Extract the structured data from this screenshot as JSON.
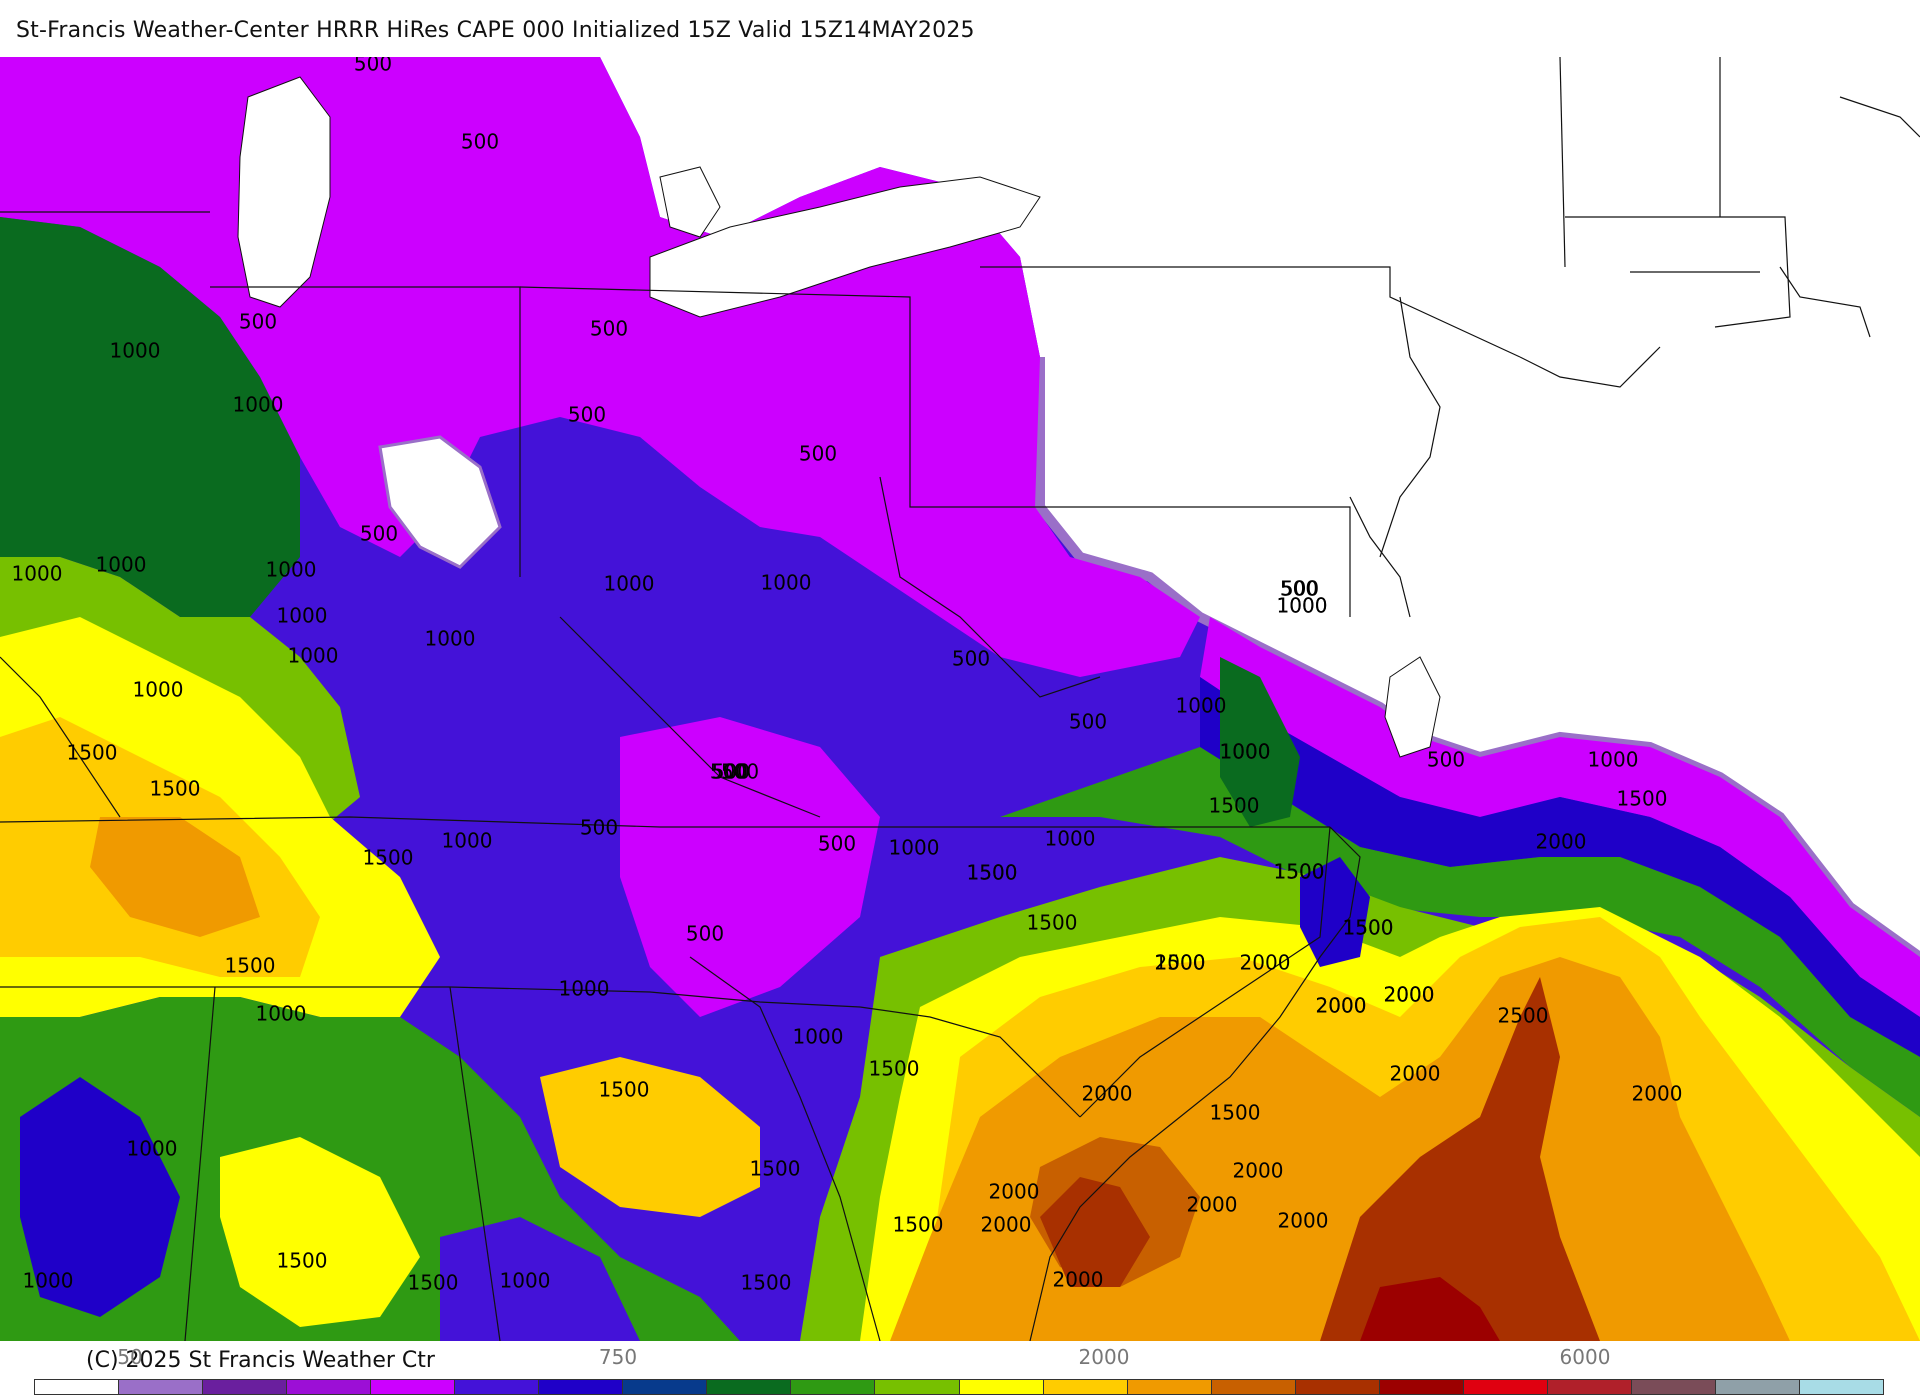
{
  "title": "St-Francis Weather-Center HRRR HiRes CAPE  000 Initialized  15Z Valid 15Z14MAY2025",
  "copyright": "(C) 2025 St Francis Weather Ctr",
  "colorbar": {
    "colors": [
      "#ffffff",
      "#9a6fc8",
      "#6a1f9e",
      "#9c0fd6",
      "#cc00ff",
      "#4412d8",
      "#1f00c8",
      "#073a8c",
      "#0a6b1f",
      "#2f9a13",
      "#77c000",
      "#ffff00",
      "#ffcc00",
      "#f09a00",
      "#c86000",
      "#a83000",
      "#9c0000",
      "#e00010",
      "#b0202a",
      "#7a4c58",
      "#8fa0a8",
      "#a8dce6"
    ],
    "tick_labels": [
      "50",
      "750",
      "2000",
      "6000"
    ]
  },
  "map": {
    "colors": {
      "land_none": "#ffffff",
      "lavender": "#9a6fc8",
      "magenta": "#cc00ff",
      "purple_dark": "#9c0fd6",
      "indigo": "#4412d8",
      "blue": "#1f00c8",
      "navy": "#073a8c",
      "dark_green": "#0a6b1f",
      "green": "#2f9a13",
      "lime": "#77c000",
      "yellow": "#ffff00",
      "gold": "#ffcc00",
      "orange": "#f09a00",
      "dark_orange": "#c86000",
      "brown": "#a83000",
      "dark_red": "#9c0000"
    },
    "contour_labels": [
      "500",
      "500",
      "500",
      "500",
      "500",
      "500",
      "500",
      "500",
      "500",
      "500",
      "500",
      "500",
      "500",
      "500",
      "500",
      "500",
      "500",
      "500",
      "1000",
      "1000",
      "1000",
      "1000",
      "1000",
      "1000",
      "1000",
      "1000",
      "1000",
      "1000",
      "1000",
      "1000",
      "1000",
      "1000",
      "1000",
      "1000",
      "1000",
      "1000",
      "1000",
      "1000",
      "1000",
      "1000",
      "1000",
      "1000",
      "1000",
      "1000",
      "1500",
      "1500",
      "1500",
      "1500",
      "1500",
      "1500",
      "1500",
      "1500",
      "1500",
      "1500",
      "1500",
      "1500",
      "1500",
      "1500",
      "1500",
      "1500",
      "1500",
      "1500",
      "1500",
      "1500",
      "1500",
      "1500",
      "2000",
      "2000",
      "2000",
      "2000",
      "2000",
      "2000",
      "2000",
      "2000",
      "2000",
      "2000",
      "2000",
      "2000",
      "2000",
      "2000",
      "2000",
      "2000",
      "2500",
      "2500",
      "2500"
    ]
  }
}
